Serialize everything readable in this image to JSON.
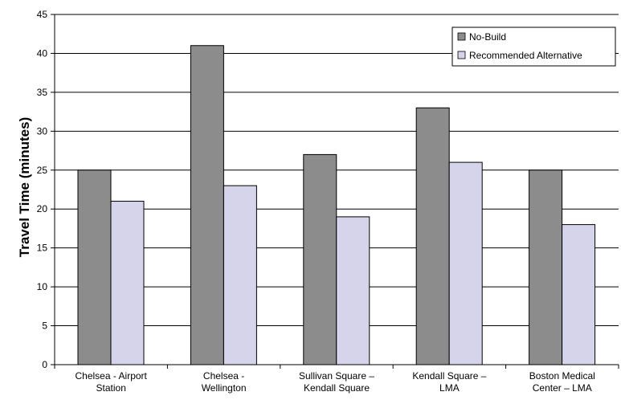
{
  "chart_data": {
    "type": "bar",
    "categories": [
      [
        "Chelsea  - Airport",
        "Station"
      ],
      [
        "Chelsea  -",
        "Wellington"
      ],
      [
        "Sullivan Square –",
        "Kendall Square"
      ],
      [
        "Kendall Square –",
        "LMA"
      ],
      [
        "Boston Medical",
        "Center – LMA"
      ]
    ],
    "series": [
      {
        "name": "No-Build",
        "values": [
          25,
          41,
          27,
          33,
          25
        ],
        "color": "#8c8c8c"
      },
      {
        "name": "Recommended Alternative",
        "values": [
          21,
          23,
          19,
          26,
          18
        ],
        "color": "#d6d4ea"
      }
    ],
    "title": "",
    "xlabel": "",
    "ylabel": "Travel Time (minutes)",
    "ylim": [
      0,
      45
    ],
    "yticks": [
      0,
      5,
      10,
      15,
      20,
      25,
      30,
      35,
      40,
      45
    ],
    "grid": true,
    "legend_position": "top-right"
  }
}
